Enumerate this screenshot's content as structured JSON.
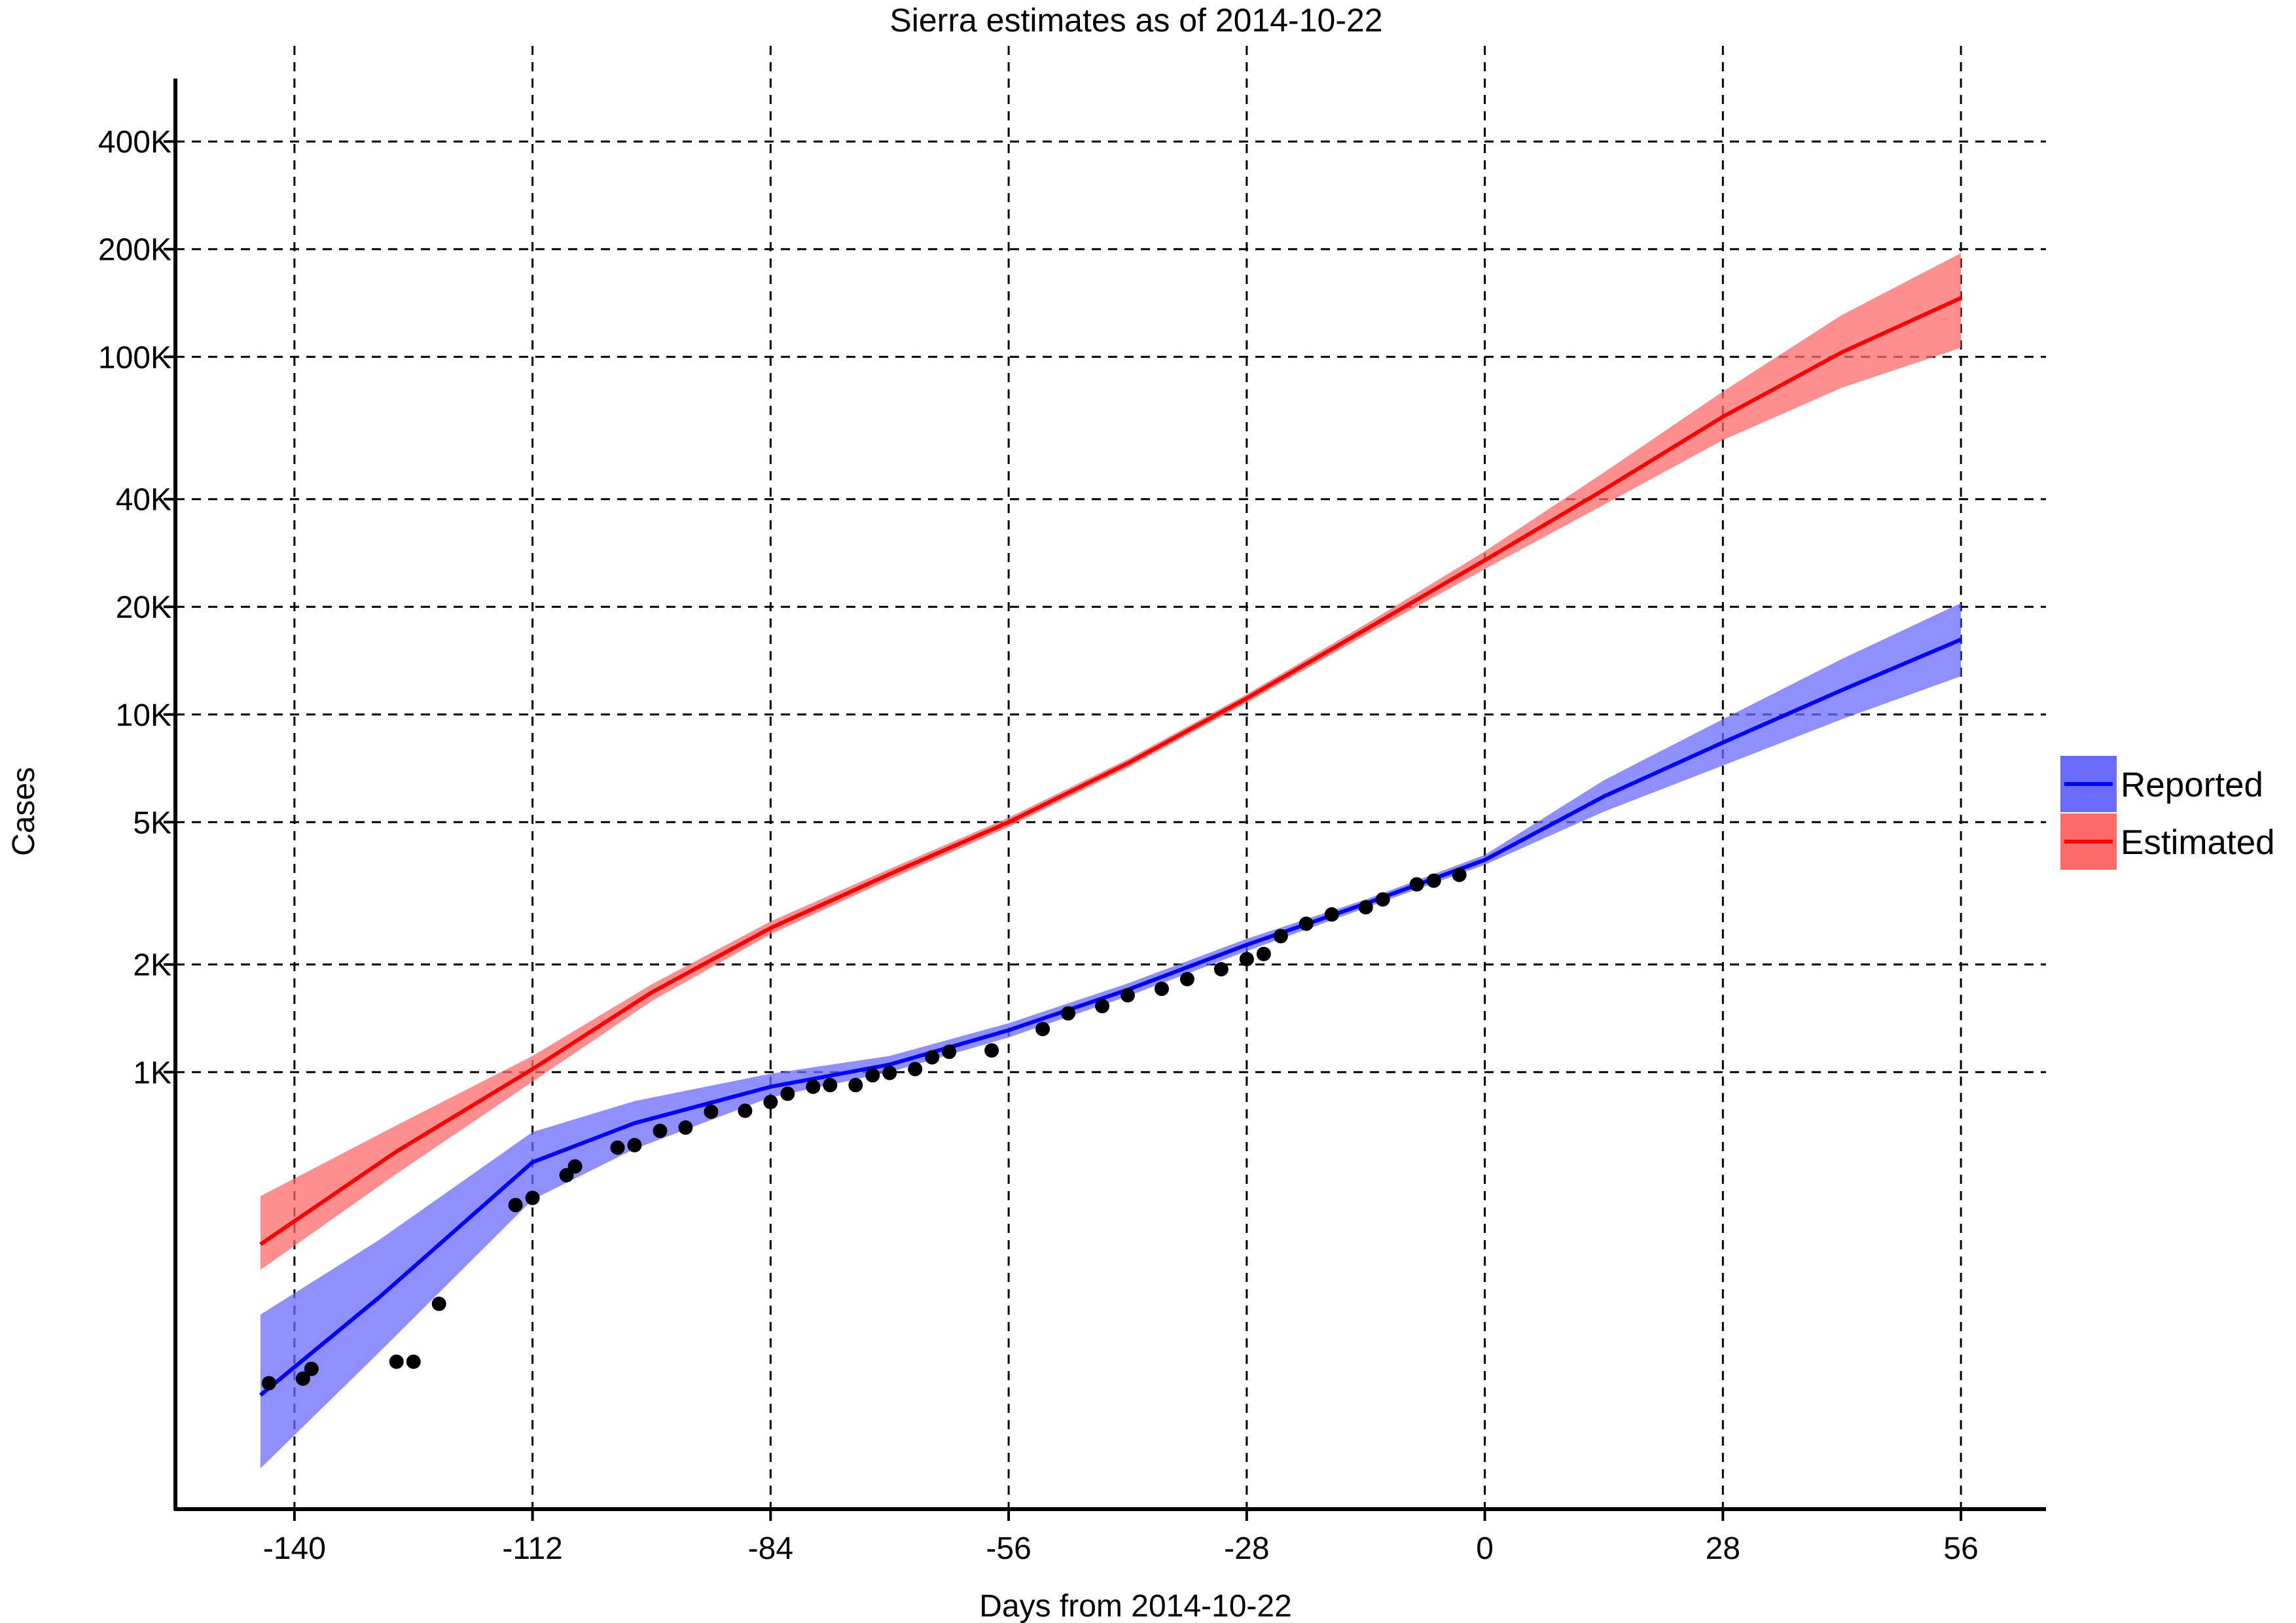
{
  "chart_data": {
    "type": "line",
    "title": "Sierra estimates as of 2014-10-22",
    "xlabel": "Days from 2014-10-22",
    "ylabel": "Cases",
    "y_scale": "log",
    "grid": true,
    "legend_position": "right",
    "xlim": [
      -154,
      66
    ],
    "ylim": [
      60,
      600000
    ],
    "x_ticks": [
      -140,
      -112,
      -84,
      -56,
      -28,
      0,
      28,
      56
    ],
    "x_tick_labels": [
      "-140",
      "-112",
      "-84",
      "-56",
      "-28",
      "0",
      "28",
      "56"
    ],
    "y_ticks": [
      1000,
      2000,
      5000,
      10000,
      20000,
      40000,
      100000,
      200000,
      400000
    ],
    "y_tick_labels": [
      "1K",
      "2K",
      "5K",
      "10K",
      "20K",
      "40K",
      "100K",
      "200K",
      "400K"
    ],
    "series": [
      {
        "name": "Reported",
        "color": "#0000ff",
        "band_color": "#6a6aff",
        "x": [
          -144,
          -130,
          -112,
          -100,
          -84,
          -70,
          -56,
          -42,
          -28,
          -14,
          0,
          14,
          28,
          42,
          56
        ],
        "y": [
          125,
          235,
          560,
          720,
          910,
          1050,
          1310,
          1700,
          2270,
          2960,
          3920,
          5900,
          8350,
          11700,
          16200
        ],
        "lower": [
          78,
          165,
          440,
          610,
          850,
          1000,
          1250,
          1630,
          2180,
          2880,
          3800,
          5350,
          7200,
          9700,
          12800
        ],
        "upper": [
          210,
          340,
          680,
          830,
          990,
          1110,
          1370,
          1770,
          2360,
          3040,
          4050,
          6550,
          9700,
          14300,
          20500
        ]
      },
      {
        "name": "Estimated",
        "color": "#ff0000",
        "band_color": "#ff6a6a",
        "x": [
          -144,
          -128,
          -112,
          -98,
          -84,
          -70,
          -56,
          -42,
          -28,
          -14,
          0,
          14,
          28,
          42,
          56
        ],
        "y": [
          330,
          600,
          1020,
          1670,
          2530,
          3580,
          5000,
          7300,
          11100,
          17300,
          27000,
          42500,
          68000,
          103000,
          146000
        ],
        "lower": [
          280,
          520,
          940,
          1580,
          2430,
          3460,
          4850,
          7100,
          10800,
          16700,
          25500,
          38600,
          58500,
          82000,
          106000
        ],
        "upper": [
          450,
          710,
          1110,
          1760,
          2640,
          3700,
          5150,
          7500,
          11400,
          17900,
          28600,
          47500,
          80000,
          131000,
          195000
        ]
      }
    ],
    "observed_points": {
      "series": "Reported",
      "color": "#000000",
      "x": [
        -143,
        -139,
        -138,
        -128,
        -126,
        -123,
        -114,
        -112,
        -108,
        -107,
        -102,
        -100,
        -97,
        -94,
        -91,
        -87,
        -84,
        -82,
        -79,
        -77,
        -74,
        -72,
        -70,
        -67,
        -65,
        -63,
        -58,
        -52,
        -49,
        -45,
        -42,
        -38,
        -35,
        -31,
        -28,
        -26,
        -24,
        -21,
        -18,
        -14,
        -12,
        -8,
        -6,
        -3
      ],
      "y": [
        135,
        139,
        148,
        155,
        155,
        225,
        425,
        445,
        515,
        545,
        615,
        625,
        685,
        700,
        775,
        780,
        825,
        870,
        910,
        920,
        920,
        980,
        995,
        1020,
        1100,
        1140,
        1150,
        1320,
        1460,
        1530,
        1640,
        1710,
        1820,
        1940,
        2070,
        2140,
        2400,
        2600,
        2760,
        2890,
        3040,
        3350,
        3430,
        3560
      ]
    }
  }
}
